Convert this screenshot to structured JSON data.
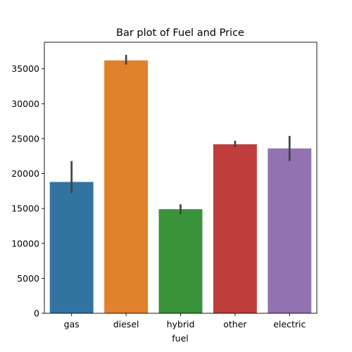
{
  "chart_data": {
    "type": "bar",
    "title": "Bar plot of Fuel and Price",
    "xlabel": "fuel",
    "ylabel": "",
    "categories": [
      "gas",
      "diesel",
      "hybrid",
      "other",
      "electric"
    ],
    "values": [
      18800,
      36200,
      14900,
      24200,
      23600
    ],
    "error_bars": [
      [
        17200,
        21800
      ],
      [
        35600,
        37000
      ],
      [
        14200,
        15600
      ],
      [
        23800,
        24700
      ],
      [
        21800,
        25400
      ]
    ],
    "colors": [
      "#3274a1",
      "#e1812c",
      "#3a923a",
      "#c03d3e",
      "#9372b2"
    ],
    "error_bar_color": "#424242",
    "ylim": [
      0,
      38800
    ],
    "yticks": [
      0,
      5000,
      10000,
      15000,
      20000,
      25000,
      30000,
      35000
    ],
    "grid": false,
    "legend": "none"
  }
}
